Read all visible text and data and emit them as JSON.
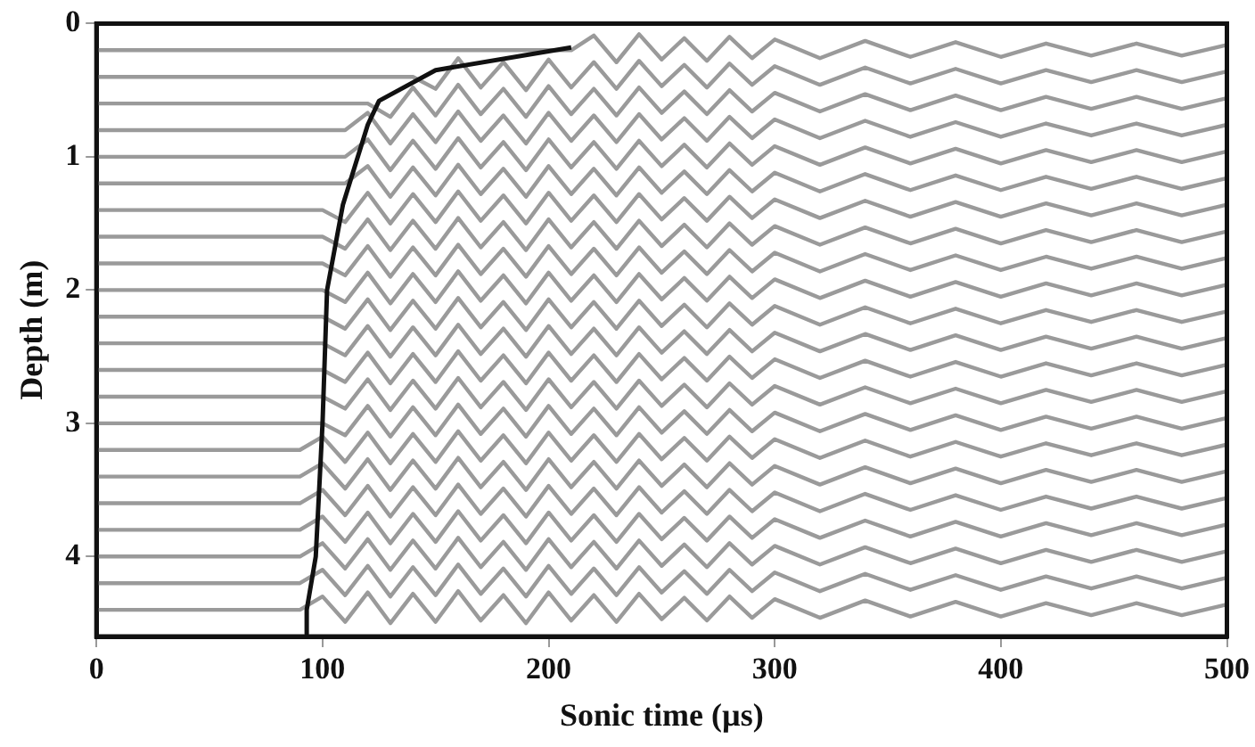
{
  "chart_data": {
    "type": "line",
    "xlabel": "Sonic time (µs)",
    "ylabel": "Depth (m)",
    "x": [
      0,
      90,
      100,
      110,
      120,
      130,
      140,
      150,
      160,
      170,
      180,
      190,
      200,
      210,
      220,
      230,
      240,
      250,
      260,
      270,
      280,
      290,
      300,
      320,
      340,
      360,
      380,
      400,
      420,
      440,
      460,
      480,
      500
    ],
    "xlim": [
      0,
      500
    ],
    "xticks": [
      0,
      100,
      200,
      300,
      400,
      500
    ],
    "ylim": [
      4.6,
      0
    ],
    "yticks": [
      0,
      1,
      2,
      3,
      4
    ],
    "grid": false,
    "legend": false,
    "marker": "none",
    "line_style": "solid",
    "series": [
      {
        "color": "#9a9a9a",
        "values": [
          0.2,
          0.2,
          0.2,
          0.2,
          0.2,
          0.2,
          0.2,
          0.2,
          0.2,
          0.2,
          0.2,
          0.2,
          0.2,
          0.2,
          0.09,
          0.29,
          0.08,
          0.27,
          0.11,
          0.28,
          0.1,
          0.26,
          0.12,
          0.26,
          0.13,
          0.25,
          0.14,
          0.25,
          0.15,
          0.24,
          0.15,
          0.24,
          0.16
        ]
      },
      {
        "color": "#9a9a9a",
        "values": [
          0.4,
          0.4,
          0.4,
          0.4,
          0.4,
          0.4,
          0.4,
          0.49,
          0.26,
          0.48,
          0.29,
          0.5,
          0.27,
          0.48,
          0.29,
          0.49,
          0.28,
          0.47,
          0.31,
          0.48,
          0.3,
          0.46,
          0.32,
          0.46,
          0.33,
          0.45,
          0.34,
          0.45,
          0.35,
          0.44,
          0.35,
          0.44,
          0.36
        ]
      },
      {
        "color": "#9a9a9a",
        "values": [
          0.6,
          0.6,
          0.6,
          0.6,
          0.6,
          0.7,
          0.48,
          0.69,
          0.46,
          0.68,
          0.49,
          0.7,
          0.47,
          0.68,
          0.49,
          0.69,
          0.48,
          0.67,
          0.51,
          0.68,
          0.5,
          0.66,
          0.52,
          0.66,
          0.53,
          0.65,
          0.54,
          0.65,
          0.55,
          0.64,
          0.55,
          0.64,
          0.56
        ]
      },
      {
        "color": "#9a9a9a",
        "values": [
          0.8,
          0.8,
          0.8,
          0.8,
          0.67,
          0.9,
          0.68,
          0.89,
          0.66,
          0.88,
          0.69,
          0.9,
          0.67,
          0.88,
          0.69,
          0.89,
          0.68,
          0.87,
          0.71,
          0.88,
          0.7,
          0.86,
          0.72,
          0.86,
          0.73,
          0.85,
          0.74,
          0.85,
          0.75,
          0.84,
          0.75,
          0.84,
          0.76
        ]
      },
      {
        "color": "#9a9a9a",
        "values": [
          1.0,
          1.0,
          1.0,
          1.0,
          0.87,
          1.1,
          0.88,
          1.09,
          0.86,
          1.08,
          0.89,
          1.1,
          0.87,
          1.08,
          0.89,
          1.09,
          0.88,
          1.07,
          0.91,
          1.08,
          0.9,
          1.06,
          0.92,
          1.06,
          0.93,
          1.05,
          0.94,
          1.05,
          0.95,
          1.04,
          0.95,
          1.04,
          0.96
        ]
      },
      {
        "color": "#9a9a9a",
        "values": [
          1.2,
          1.2,
          1.2,
          1.2,
          1.07,
          1.3,
          1.08,
          1.29,
          1.06,
          1.28,
          1.09,
          1.3,
          1.07,
          1.28,
          1.09,
          1.29,
          1.08,
          1.27,
          1.11,
          1.28,
          1.1,
          1.26,
          1.12,
          1.26,
          1.13,
          1.25,
          1.14,
          1.25,
          1.15,
          1.24,
          1.15,
          1.24,
          1.16
        ]
      },
      {
        "color": "#9a9a9a",
        "values": [
          1.4,
          1.4,
          1.4,
          1.49,
          1.27,
          1.5,
          1.28,
          1.49,
          1.26,
          1.48,
          1.29,
          1.5,
          1.27,
          1.48,
          1.29,
          1.49,
          1.28,
          1.47,
          1.31,
          1.48,
          1.3,
          1.46,
          1.32,
          1.46,
          1.33,
          1.45,
          1.34,
          1.45,
          1.35,
          1.44,
          1.35,
          1.44,
          1.36
        ]
      },
      {
        "color": "#9a9a9a",
        "values": [
          1.6,
          1.6,
          1.6,
          1.69,
          1.47,
          1.7,
          1.48,
          1.69,
          1.46,
          1.68,
          1.49,
          1.7,
          1.47,
          1.68,
          1.49,
          1.69,
          1.48,
          1.67,
          1.51,
          1.68,
          1.5,
          1.66,
          1.52,
          1.66,
          1.53,
          1.65,
          1.54,
          1.65,
          1.55,
          1.64,
          1.55,
          1.64,
          1.56
        ]
      },
      {
        "color": "#9a9a9a",
        "values": [
          1.8,
          1.8,
          1.8,
          1.89,
          1.67,
          1.9,
          1.68,
          1.89,
          1.66,
          1.88,
          1.69,
          1.9,
          1.67,
          1.88,
          1.69,
          1.89,
          1.68,
          1.87,
          1.71,
          1.88,
          1.7,
          1.86,
          1.72,
          1.86,
          1.73,
          1.85,
          1.74,
          1.85,
          1.75,
          1.84,
          1.75,
          1.84,
          1.76
        ]
      },
      {
        "color": "#9a9a9a",
        "values": [
          2.0,
          2.0,
          2.0,
          2.09,
          1.87,
          2.1,
          1.88,
          2.09,
          1.86,
          2.08,
          1.89,
          2.1,
          1.87,
          2.08,
          1.89,
          2.09,
          1.88,
          2.07,
          1.91,
          2.08,
          1.9,
          2.06,
          1.92,
          2.06,
          1.93,
          2.05,
          1.94,
          2.05,
          1.95,
          2.04,
          1.95,
          2.04,
          1.96
        ]
      },
      {
        "color": "#9a9a9a",
        "values": [
          2.2,
          2.2,
          2.2,
          2.29,
          2.07,
          2.3,
          2.08,
          2.29,
          2.06,
          2.28,
          2.09,
          2.3,
          2.07,
          2.28,
          2.09,
          2.29,
          2.08,
          2.27,
          2.11,
          2.28,
          2.1,
          2.26,
          2.12,
          2.26,
          2.13,
          2.25,
          2.14,
          2.25,
          2.15,
          2.24,
          2.15,
          2.24,
          2.16
        ]
      },
      {
        "color": "#9a9a9a",
        "values": [
          2.4,
          2.4,
          2.4,
          2.49,
          2.27,
          2.5,
          2.28,
          2.49,
          2.26,
          2.48,
          2.29,
          2.5,
          2.27,
          2.48,
          2.29,
          2.49,
          2.28,
          2.47,
          2.31,
          2.48,
          2.3,
          2.46,
          2.32,
          2.46,
          2.33,
          2.45,
          2.34,
          2.45,
          2.35,
          2.44,
          2.35,
          2.44,
          2.36
        ]
      },
      {
        "color": "#9a9a9a",
        "values": [
          2.6,
          2.6,
          2.6,
          2.69,
          2.47,
          2.7,
          2.48,
          2.69,
          2.46,
          2.68,
          2.49,
          2.7,
          2.47,
          2.68,
          2.49,
          2.69,
          2.48,
          2.67,
          2.51,
          2.68,
          2.5,
          2.66,
          2.52,
          2.66,
          2.53,
          2.65,
          2.54,
          2.65,
          2.55,
          2.64,
          2.55,
          2.64,
          2.56
        ]
      },
      {
        "color": "#9a9a9a",
        "values": [
          2.8,
          2.8,
          2.8,
          2.89,
          2.67,
          2.9,
          2.68,
          2.89,
          2.66,
          2.88,
          2.69,
          2.9,
          2.67,
          2.88,
          2.69,
          2.89,
          2.68,
          2.87,
          2.71,
          2.88,
          2.7,
          2.86,
          2.72,
          2.86,
          2.73,
          2.85,
          2.74,
          2.85,
          2.75,
          2.84,
          2.75,
          2.84,
          2.76
        ]
      },
      {
        "color": "#9a9a9a",
        "values": [
          3.0,
          3.0,
          3.0,
          3.09,
          2.87,
          3.1,
          2.88,
          3.09,
          2.86,
          3.08,
          2.89,
          3.1,
          2.87,
          3.08,
          2.89,
          3.09,
          2.88,
          3.07,
          2.91,
          3.08,
          2.9,
          3.06,
          2.92,
          3.06,
          2.93,
          3.05,
          2.94,
          3.05,
          2.95,
          3.04,
          2.95,
          3.04,
          2.96
        ]
      },
      {
        "color": "#9a9a9a",
        "values": [
          3.2,
          3.2,
          3.1,
          3.29,
          3.07,
          3.3,
          3.08,
          3.29,
          3.06,
          3.28,
          3.09,
          3.3,
          3.07,
          3.28,
          3.09,
          3.29,
          3.08,
          3.27,
          3.11,
          3.28,
          3.1,
          3.26,
          3.12,
          3.26,
          3.13,
          3.25,
          3.14,
          3.25,
          3.15,
          3.24,
          3.15,
          3.24,
          3.16
        ]
      },
      {
        "color": "#9a9a9a",
        "values": [
          3.4,
          3.4,
          3.3,
          3.49,
          3.27,
          3.5,
          3.28,
          3.49,
          3.26,
          3.48,
          3.29,
          3.5,
          3.27,
          3.48,
          3.29,
          3.49,
          3.28,
          3.47,
          3.31,
          3.48,
          3.3,
          3.46,
          3.32,
          3.46,
          3.33,
          3.45,
          3.34,
          3.45,
          3.35,
          3.44,
          3.35,
          3.44,
          3.36
        ]
      },
      {
        "color": "#9a9a9a",
        "values": [
          3.6,
          3.6,
          3.5,
          3.69,
          3.47,
          3.7,
          3.48,
          3.69,
          3.46,
          3.68,
          3.49,
          3.7,
          3.47,
          3.68,
          3.49,
          3.69,
          3.48,
          3.67,
          3.51,
          3.68,
          3.5,
          3.66,
          3.52,
          3.66,
          3.53,
          3.65,
          3.54,
          3.65,
          3.55,
          3.64,
          3.55,
          3.64,
          3.56
        ]
      },
      {
        "color": "#9a9a9a",
        "values": [
          3.8,
          3.8,
          3.7,
          3.89,
          3.67,
          3.9,
          3.68,
          3.89,
          3.66,
          3.88,
          3.69,
          3.9,
          3.67,
          3.88,
          3.69,
          3.89,
          3.68,
          3.87,
          3.71,
          3.88,
          3.7,
          3.86,
          3.72,
          3.86,
          3.73,
          3.85,
          3.74,
          3.85,
          3.75,
          3.84,
          3.75,
          3.84,
          3.76
        ]
      },
      {
        "color": "#9a9a9a",
        "values": [
          4.0,
          4.0,
          3.9,
          4.09,
          3.87,
          4.1,
          3.88,
          4.09,
          3.86,
          4.08,
          3.89,
          4.1,
          3.87,
          4.08,
          3.89,
          4.09,
          3.88,
          4.07,
          3.91,
          4.08,
          3.9,
          4.06,
          3.92,
          4.06,
          3.93,
          4.05,
          3.94,
          4.05,
          3.95,
          4.04,
          3.95,
          4.04,
          3.96
        ]
      },
      {
        "color": "#9a9a9a",
        "values": [
          4.2,
          4.2,
          4.1,
          4.29,
          4.07,
          4.3,
          4.08,
          4.29,
          4.06,
          4.28,
          4.09,
          4.3,
          4.07,
          4.28,
          4.09,
          4.29,
          4.08,
          4.27,
          4.11,
          4.28,
          4.1,
          4.26,
          4.12,
          4.26,
          4.13,
          4.25,
          4.14,
          4.25,
          4.15,
          4.24,
          4.15,
          4.24,
          4.16
        ]
      },
      {
        "color": "#9a9a9a",
        "values": [
          4.4,
          4.4,
          4.3,
          4.49,
          4.27,
          4.5,
          4.28,
          4.49,
          4.26,
          4.48,
          4.29,
          4.5,
          4.27,
          4.48,
          4.29,
          4.49,
          4.28,
          4.47,
          4.31,
          4.48,
          4.3,
          4.46,
          4.32,
          4.46,
          4.33,
          4.45,
          4.34,
          4.45,
          4.35,
          4.44,
          4.35,
          4.44,
          4.36
        ]
      },
      {
        "color": "#111111",
        "x": [
          210,
          150,
          125,
          120,
          109,
          102,
          100,
          97,
          93,
          93
        ],
        "values": [
          0.18,
          0.35,
          0.58,
          0.76,
          1.36,
          2.0,
          3.0,
          4.0,
          4.4,
          4.58
        ]
      }
    ]
  }
}
